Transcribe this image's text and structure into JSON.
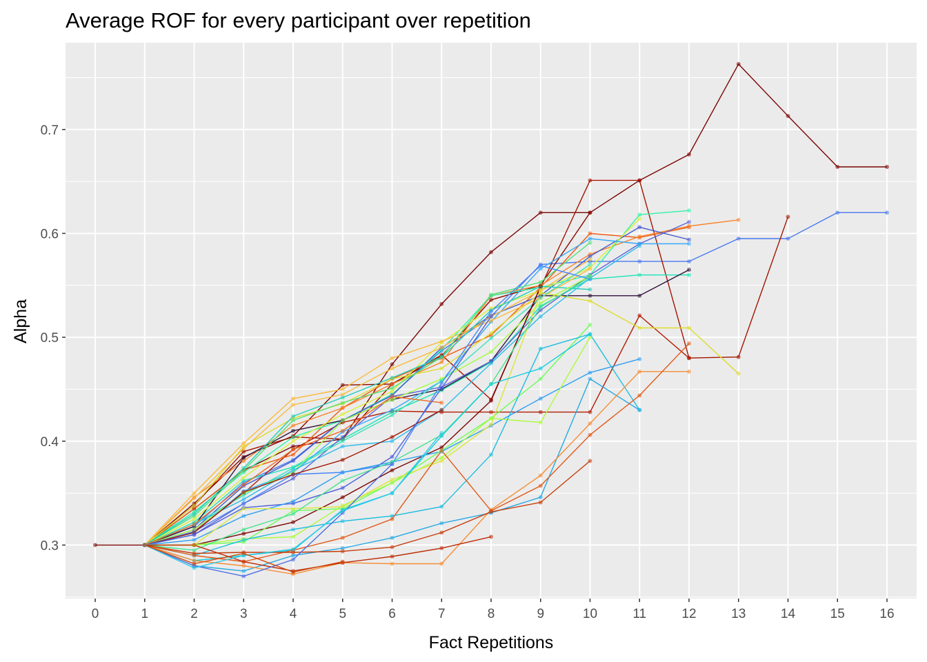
{
  "chart_data": {
    "type": "line",
    "title": "Average ROF for every participant over repetition",
    "xlabel": "Fact Repetitions",
    "ylabel": "Alpha",
    "xlim": [
      -0.6,
      16.6
    ],
    "ylim": [
      0.2485,
      0.7835
    ],
    "x_ticks": [
      0,
      1,
      2,
      3,
      4,
      5,
      6,
      7,
      8,
      9,
      10,
      11,
      12,
      13,
      14,
      15,
      16
    ],
    "x_tick_labels": [
      "0",
      "1",
      "2",
      "3",
      "4",
      "5",
      "6",
      "7",
      "8",
      "9",
      "10",
      "11",
      "12",
      "13",
      "14",
      "15",
      "16"
    ],
    "y_ticks": [
      0.3,
      0.4,
      0.5,
      0.6,
      0.7
    ],
    "y_tick_labels": [
      "0.3",
      "0.4",
      "0.5",
      "0.6",
      "0.7"
    ],
    "grid": true,
    "legend": "none",
    "panel_background": "#ebebeb",
    "grid_color": "#ffffff",
    "series": [
      {
        "color": "#7a0403",
        "x": [
          0,
          1,
          2,
          3,
          4,
          5,
          6,
          7,
          8,
          9,
          10,
          11,
          12,
          13,
          14,
          15,
          16
        ],
        "values": [
          0.3,
          0.3,
          0.335,
          0.372,
          0.395,
          0.402,
          0.474,
          0.532,
          0.582,
          0.62,
          0.62,
          0.651,
          0.676,
          0.763,
          0.713,
          0.664,
          0.664
        ]
      },
      {
        "color": "#4777ef",
        "x": [
          1,
          2,
          3,
          4,
          5,
          6,
          7,
          8,
          9,
          10,
          11,
          12,
          13,
          14,
          15,
          16
        ],
        "values": [
          0.3,
          0.318,
          0.36,
          0.382,
          0.42,
          0.445,
          0.487,
          0.52,
          0.57,
          0.573,
          0.573,
          0.573,
          0.595,
          0.595,
          0.62,
          0.62
        ]
      },
      {
        "color": "#a31301",
        "x": [
          1,
          2,
          3,
          4,
          5,
          6,
          7,
          8,
          9,
          10,
          11,
          12,
          13,
          14
        ],
        "values": [
          0.3,
          0.338,
          0.39,
          0.404,
          0.402,
          0.455,
          0.483,
          0.44,
          0.548,
          0.651,
          0.651,
          0.48,
          0.481,
          0.616
        ]
      },
      {
        "color": "#8a0a00",
        "x": [
          1,
          2,
          3,
          4,
          5,
          6,
          7,
          8,
          9,
          10
        ],
        "values": [
          0.3,
          0.34,
          0.385,
          0.405,
          0.454,
          0.455,
          0.482,
          0.536,
          0.55,
          0.62
        ]
      },
      {
        "color": "#b21a01",
        "x": [
          1,
          2,
          3,
          4,
          5,
          6,
          7,
          8,
          9,
          10,
          11,
          12
        ],
        "values": [
          0.3,
          0.313,
          0.35,
          0.392,
          0.418,
          0.429,
          0.428,
          0.428,
          0.428,
          0.428,
          0.521,
          0.48
        ]
      },
      {
        "color": "#ee5a12",
        "x": [
          1,
          2,
          3,
          4,
          5,
          6,
          7,
          8,
          9,
          10,
          11,
          12
        ],
        "values": [
          0.3,
          0.335,
          0.372,
          0.387,
          0.432,
          0.46,
          0.48,
          0.502,
          0.548,
          0.6,
          0.596,
          0.606
        ]
      },
      {
        "color": "#f8832a",
        "x": [
          1,
          2,
          3,
          4,
          5,
          6,
          7,
          8,
          9,
          10,
          11,
          12,
          13
        ],
        "values": [
          0.3,
          0.346,
          0.381,
          0.415,
          0.432,
          0.455,
          0.476,
          0.54,
          0.55,
          0.58,
          0.597,
          0.607,
          0.613
        ]
      },
      {
        "color": "#2ef2a8",
        "x": [
          1,
          2,
          3,
          4,
          5,
          6,
          7,
          8,
          9,
          10,
          11,
          12
        ],
        "values": [
          0.3,
          0.332,
          0.37,
          0.404,
          0.42,
          0.445,
          0.488,
          0.54,
          0.548,
          0.56,
          0.618,
          0.622
        ]
      },
      {
        "color": "#1ae4b6",
        "x": [
          1,
          2,
          3,
          4,
          5,
          6,
          7,
          8,
          9,
          10,
          11,
          12
        ],
        "values": [
          0.3,
          0.322,
          0.362,
          0.375,
          0.402,
          0.428,
          0.449,
          0.476,
          0.53,
          0.556,
          0.56,
          0.56
        ]
      },
      {
        "color": "#4359cf",
        "x": [
          1,
          2,
          3,
          4,
          5,
          6,
          7,
          8,
          9,
          10,
          11,
          12
        ],
        "values": [
          0.3,
          0.315,
          0.357,
          0.381,
          0.42,
          0.444,
          0.49,
          0.521,
          0.54,
          0.578,
          0.606,
          0.594
        ]
      },
      {
        "color": "#30123b",
        "x": [
          1,
          2,
          3,
          4,
          5,
          6,
          7,
          8,
          9,
          10,
          11,
          12
        ],
        "values": [
          0.3,
          0.318,
          0.384,
          0.41,
          0.42,
          0.44,
          0.45,
          0.477,
          0.54,
          0.54,
          0.54,
          0.565
        ]
      },
      {
        "color": "#5c64d6",
        "x": [
          1,
          2,
          3,
          4,
          5,
          6,
          7,
          8,
          9,
          10,
          11,
          12
        ],
        "values": [
          0.3,
          0.31,
          0.34,
          0.364,
          0.404,
          0.443,
          0.452,
          0.477,
          0.526,
          0.56,
          0.59,
          0.611
        ]
      },
      {
        "color": "#dddc2d",
        "x": [
          1,
          2,
          3,
          4,
          5,
          6,
          7,
          8,
          9,
          10,
          11,
          12,
          13
        ],
        "values": [
          0.3,
          0.338,
          0.395,
          0.422,
          0.436,
          0.46,
          0.47,
          0.504,
          0.543,
          0.535,
          0.509,
          0.509,
          0.465
        ]
      },
      {
        "color": "#d8ef35",
        "x": [
          1,
          2,
          3,
          4,
          5,
          6,
          7,
          8,
          9,
          10,
          11
        ],
        "values": [
          0.3,
          0.325,
          0.365,
          0.4,
          0.426,
          0.448,
          0.495,
          0.528,
          0.545,
          0.567,
          0.614
        ]
      },
      {
        "color": "#36aaf9",
        "x": [
          1,
          2,
          3,
          4,
          5,
          6,
          7,
          8,
          9,
          10,
          11,
          12
        ],
        "values": [
          0.3,
          0.312,
          0.352,
          0.37,
          0.409,
          0.43,
          0.458,
          0.515,
          0.566,
          0.595,
          0.59,
          0.59
        ]
      },
      {
        "color": "#fbb93a",
        "x": [
          1,
          2,
          3,
          4,
          5,
          6,
          7,
          8,
          9,
          10
        ],
        "values": [
          0.3,
          0.35,
          0.398,
          0.441,
          0.45,
          0.48,
          0.496,
          0.516,
          0.538,
          0.566
        ]
      },
      {
        "color": "#f9ba38",
        "x": [
          1,
          2,
          3,
          4,
          5,
          6,
          7,
          8,
          9,
          10
        ],
        "values": [
          0.3,
          0.345,
          0.393,
          0.435,
          0.445,
          0.47,
          0.49,
          0.52,
          0.545,
          0.575
        ]
      },
      {
        "color": "#4fe274",
        "x": [
          1,
          2,
          3,
          4,
          5,
          6,
          7,
          8,
          9,
          10
        ],
        "values": [
          0.3,
          0.328,
          0.372,
          0.42,
          0.437,
          0.451,
          0.481,
          0.541,
          0.553,
          0.591
        ]
      },
      {
        "color": "#21ceb8",
        "x": [
          1,
          2,
          3,
          4,
          5,
          6,
          7,
          8,
          9,
          10
        ],
        "values": [
          0.3,
          0.33,
          0.374,
          0.424,
          0.442,
          0.461,
          0.481,
          0.526,
          0.549,
          0.546
        ]
      },
      {
        "color": "#a1fc3d",
        "x": [
          1,
          2,
          3,
          4,
          5,
          6,
          7,
          8,
          9,
          10
        ],
        "values": [
          0.3,
          0.315,
          0.35,
          0.37,
          0.42,
          0.44,
          0.46,
          0.486,
          0.533,
          0.559
        ]
      },
      {
        "color": "#3be1ba",
        "x": [
          1,
          2,
          3,
          4,
          5,
          6,
          7,
          8,
          9,
          10
        ],
        "values": [
          0.3,
          0.32,
          0.348,
          0.374,
          0.4,
          0.425,
          0.458,
          0.499,
          0.538,
          0.57
        ]
      },
      {
        "color": "#28bceb",
        "x": [
          1,
          2,
          3,
          4,
          5,
          6,
          7,
          8,
          9,
          10,
          11
        ],
        "values": [
          0.3,
          0.32,
          0.344,
          0.372,
          0.395,
          0.4,
          0.43,
          0.475,
          0.52,
          0.557,
          0.588
        ]
      },
      {
        "color": "#4686fb",
        "x": [
          1,
          2,
          3,
          4,
          5,
          6,
          7,
          8,
          9,
          10
        ],
        "values": [
          0.3,
          0.313,
          0.34,
          0.368,
          0.37,
          0.378,
          0.456,
          0.525,
          0.569,
          0.556
        ]
      },
      {
        "color": "#7a0403",
        "x": [
          1,
          2,
          3,
          4,
          5,
          6,
          7,
          8,
          9
        ],
        "values": [
          0.3,
          0.3,
          0.311,
          0.322,
          0.346,
          0.372,
          0.394,
          0.439,
          0.549
        ]
      },
      {
        "color": "#a21502",
        "x": [
          1,
          2,
          3,
          4,
          5,
          6,
          7
        ],
        "values": [
          0.3,
          0.312,
          0.351,
          0.368,
          0.382,
          0.404,
          0.43
        ]
      },
      {
        "color": "#f06a21",
        "x": [
          1,
          2,
          3,
          4,
          5,
          6,
          7
        ],
        "values": [
          0.3,
          0.32,
          0.358,
          0.392,
          0.41,
          0.443,
          0.437
        ]
      },
      {
        "color": "#4b5fdc",
        "x": [
          1,
          2,
          3,
          4,
          5,
          6,
          7,
          8
        ],
        "values": [
          0.3,
          0.31,
          0.336,
          0.34,
          0.355,
          0.385,
          0.451,
          0.52
        ]
      },
      {
        "color": "#2d9ff2",
        "x": [
          1,
          2,
          3,
          4,
          5,
          6,
          7,
          8,
          9,
          10,
          11
        ],
        "values": [
          0.3,
          0.305,
          0.328,
          0.342,
          0.37,
          0.38,
          0.39,
          0.415,
          0.441,
          0.466,
          0.479
        ]
      },
      {
        "color": "#6cfd56",
        "x": [
          1,
          2,
          3,
          4,
          5,
          6,
          7,
          8,
          9,
          10
        ],
        "values": [
          0.3,
          0.3,
          0.303,
          0.333,
          0.335,
          0.36,
          0.391,
          0.422,
          0.46,
          0.512
        ]
      },
      {
        "color": "#aafb3c",
        "x": [
          1,
          2,
          3,
          4,
          5,
          6,
          7,
          8,
          9,
          10
        ],
        "values": [
          0.3,
          0.3,
          0.306,
          0.308,
          0.338,
          0.36,
          0.384,
          0.422,
          0.418,
          0.5
        ]
      },
      {
        "color": "#dbe53a",
        "x": [
          1,
          2,
          3,
          4,
          5,
          6,
          7,
          8,
          9
        ],
        "values": [
          0.3,
          0.3,
          0.335,
          0.335,
          0.337,
          0.363,
          0.381,
          0.416,
          0.542
        ]
      },
      {
        "color": "#45e38f",
        "x": [
          1,
          2,
          3,
          4,
          5,
          6,
          7,
          8,
          9,
          10
        ],
        "values": [
          0.3,
          0.295,
          0.315,
          0.33,
          0.362,
          0.38,
          0.406,
          0.455,
          0.529,
          0.558
        ]
      },
      {
        "color": "#1cbde0",
        "x": [
          1,
          2,
          3,
          4,
          5,
          6,
          7,
          8,
          9,
          10,
          11
        ],
        "values": [
          0.3,
          0.29,
          0.305,
          0.315,
          0.323,
          0.328,
          0.337,
          0.387,
          0.489,
          0.503,
          0.43
        ]
      },
      {
        "color": "#12cddf",
        "x": [
          1,
          2,
          3,
          4,
          5,
          6,
          7,
          8,
          9,
          10
        ],
        "values": [
          0.3,
          0.285,
          0.29,
          0.295,
          0.334,
          0.35,
          0.405,
          0.455,
          0.47,
          0.503
        ]
      },
      {
        "color": "#25a9e3",
        "x": [
          1,
          2,
          3,
          4,
          5,
          6,
          7,
          8,
          9,
          10,
          11
        ],
        "values": [
          0.3,
          0.28,
          0.275,
          0.29,
          0.297,
          0.307,
          0.321,
          0.331,
          0.346,
          0.46,
          0.43
        ]
      },
      {
        "color": "#f58d36",
        "x": [
          1,
          2,
          3,
          4,
          5,
          6,
          7,
          8,
          9,
          10,
          11,
          12
        ],
        "values": [
          0.3,
          0.285,
          0.28,
          0.272,
          0.283,
          0.282,
          0.282,
          0.334,
          0.367,
          0.417,
          0.467,
          0.467
        ]
      },
      {
        "color": "#e05a1a",
        "x": [
          1,
          2,
          3,
          4,
          5,
          6,
          7,
          8,
          9,
          10,
          11,
          12
        ],
        "values": [
          0.3,
          0.29,
          0.284,
          0.295,
          0.307,
          0.325,
          0.391,
          0.333,
          0.357,
          0.406,
          0.444,
          0.494
        ]
      },
      {
        "color": "#c43d0b",
        "x": [
          1,
          2,
          3,
          4,
          5,
          6,
          7,
          8,
          9,
          10
        ],
        "values": [
          0.3,
          0.292,
          0.293,
          0.293,
          0.294,
          0.298,
          0.312,
          0.332,
          0.341,
          0.381
        ]
      },
      {
        "color": "#bd2c06",
        "x": [
          1,
          2,
          3,
          4,
          5,
          6,
          7,
          8
        ],
        "values": [
          0.3,
          0.3,
          0.284,
          0.275,
          0.283,
          0.289,
          0.297,
          0.308
        ]
      },
      {
        "color": "#4a6fe3",
        "x": [
          1,
          2,
          3,
          4,
          5,
          6
        ],
        "values": [
          0.3,
          0.28,
          0.27,
          0.286,
          0.331,
          0.378
        ]
      },
      {
        "color": "#2cc9e8",
        "x": [
          1,
          2,
          3,
          4,
          5,
          6,
          7
        ],
        "values": [
          0.3,
          0.278,
          0.29,
          0.296,
          0.333,
          0.35,
          0.408
        ]
      },
      {
        "color": "#d14607",
        "x": [
          1,
          2,
          3,
          4,
          5
        ],
        "values": [
          0.3,
          0.282,
          0.292,
          0.274,
          0.284
        ]
      }
    ]
  }
}
